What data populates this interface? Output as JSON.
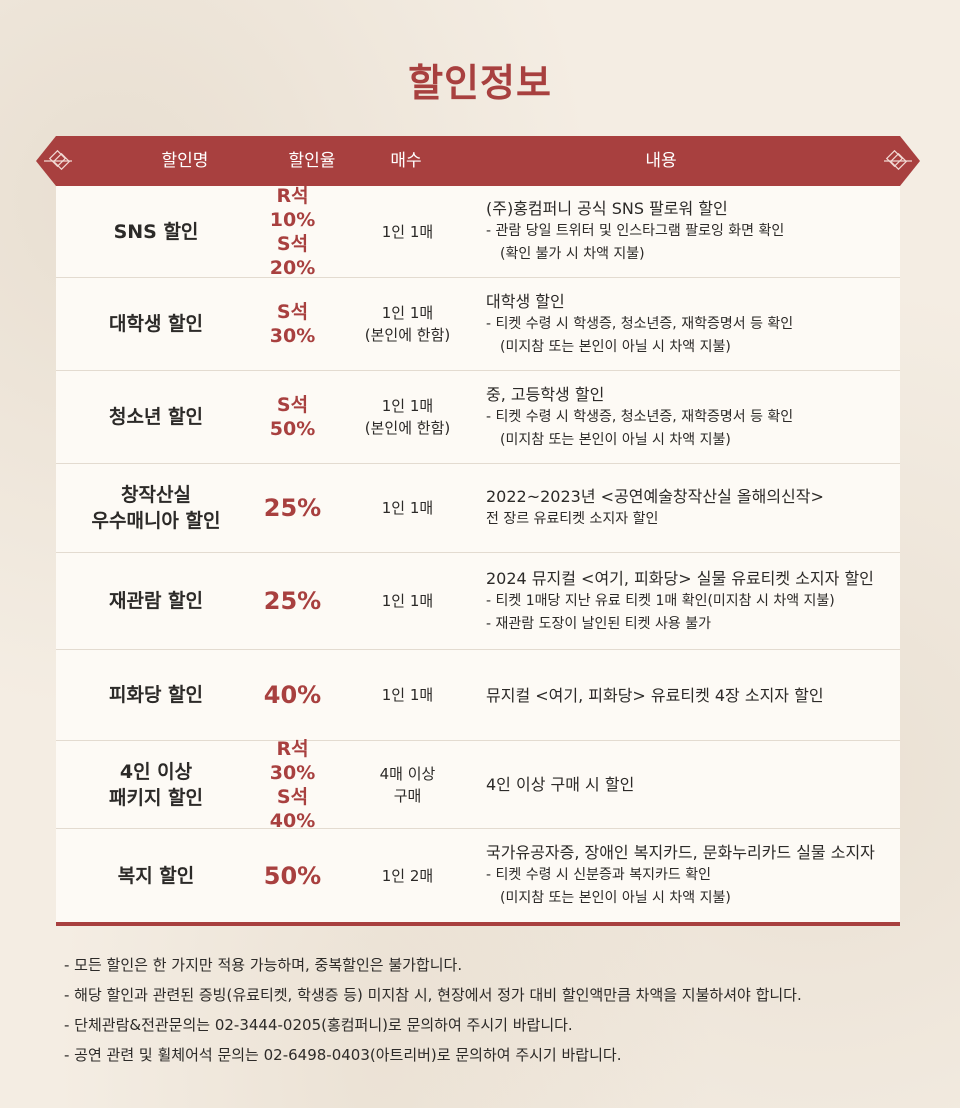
{
  "title": "할인정보",
  "header": {
    "name": "할인명",
    "rate": "할인율",
    "qty": "매수",
    "desc": "내용"
  },
  "rows": [
    {
      "name": [
        "SNS 할인"
      ],
      "rate": [
        "R석 10%",
        "S석 20%"
      ],
      "qty": [
        "1인 1매"
      ],
      "desc": [
        "(주)홍컴퍼니 공식 SNS 팔로워 할인",
        "- 관람 당일 트위터 및 인스타그램 팔로잉 화면 확인",
        "(확인 불가 시 차액 지불)"
      ]
    },
    {
      "name": [
        "대학생 할인"
      ],
      "rate": [
        "S석 30%"
      ],
      "qty": [
        "1인 1매",
        "(본인에 한함)"
      ],
      "desc": [
        "대학생 할인",
        "- 티켓 수령 시 학생증, 청소년증, 재학증명서 등 확인",
        "(미지참 또는 본인이 아닐 시 차액 지불)"
      ]
    },
    {
      "name": [
        "청소년 할인"
      ],
      "rate": [
        "S석 50%"
      ],
      "qty": [
        "1인 1매",
        "(본인에 한함)"
      ],
      "desc": [
        "중, 고등학생 할인",
        "- 티켓 수령 시 학생증, 청소년증, 재학증명서 등 확인",
        "(미지참 또는 본인이 아닐 시 차액 지불)"
      ]
    },
    {
      "name": [
        "창작산실",
        "우수매니아 할인"
      ],
      "rate": [
        "25%"
      ],
      "qty": [
        "1인 1매"
      ],
      "desc": [
        "2022~2023년 <공연예술창작산실 올해의신작>",
        "전 장르 유료티켓 소지자 할인"
      ]
    },
    {
      "name": [
        "재관람 할인"
      ],
      "rate": [
        "25%"
      ],
      "qty": [
        "1인 1매"
      ],
      "desc": [
        "2024 뮤지컬 <여기, 피화당> 실물 유료티켓 소지자 할인",
        "- 티켓 1매당 지난 유료 티켓 1매 확인(미지참 시 차액 지불)",
        "- 재관람 도장이 날인된 티켓 사용 불가"
      ]
    },
    {
      "name": [
        "피화당 할인"
      ],
      "rate": [
        "40%"
      ],
      "qty": [
        "1인 1매"
      ],
      "desc": [
        "뮤지컬 <여기, 피화당> 유료티켓 4장 소지자 할인"
      ]
    },
    {
      "name": [
        "4인 이상",
        "패키지 할인"
      ],
      "rate": [
        "R석 30%",
        "S석 40%"
      ],
      "qty": [
        "4매 이상",
        "구매"
      ],
      "desc": [
        "4인 이상 구매 시 할인"
      ]
    },
    {
      "name": [
        "복지 할인"
      ],
      "rate": [
        "50%"
      ],
      "qty": [
        "1인 2매"
      ],
      "desc": [
        "국가유공자증, 장애인 복지카드, 문화누리카드 실물 소지자",
        "- 티켓 수령 시 신분증과 복지카드 확인",
        "(미지참 또는 본인이 아닐 시 차액 지불)"
      ]
    }
  ],
  "notes": [
    "- 모든 할인은 한 가지만 적용 가능하며, 중복할인은 불가합니다.",
    "- 해당 할인과 관련된 증빙(유료티켓, 학생증 등) 미지참 시, 현장에서 정가 대비 할인액만큼 차액을 지불하셔야 합니다.",
    "- 단체관람&전관문의는 02-3444-0205(홍컴퍼니)로 문의하여 주시기 바랍니다.",
    "- 공연 관련 및 휠체어석 문의는 02-6498-0403(아트리버)로 문의하여 주시기 바랍니다."
  ],
  "colors": {
    "accent": "#a8403f",
    "background": "#f4ede3",
    "table_bg": "#fdfaf5"
  }
}
